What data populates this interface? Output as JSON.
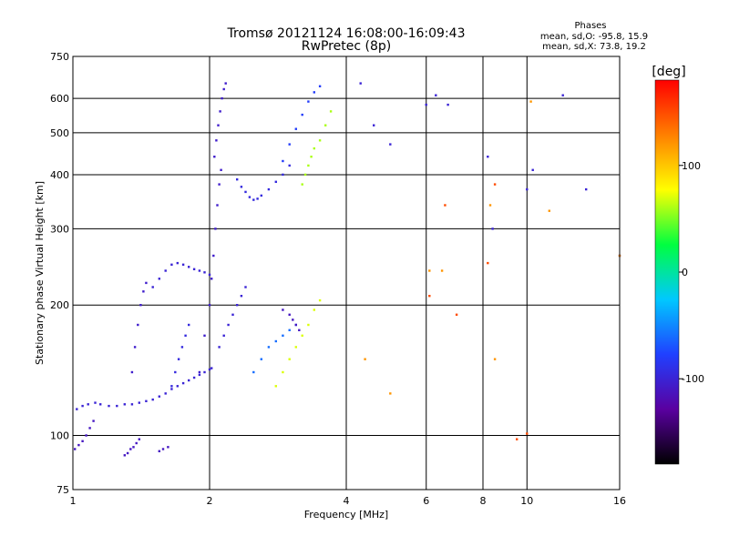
{
  "chart_data": {
    "type": "scatter",
    "title": "Tromsø 20121124 16:08:00-16:09:43",
    "subtitle": "RwPretec (8p)",
    "xlabel": "Frequency [MHz]",
    "ylabel": "Stationary phase Virtual Height [km]",
    "x_scale": "log",
    "y_scale": "log",
    "xlim": [
      1,
      16
    ],
    "ylim": [
      75,
      750
    ],
    "x_ticks": [
      1,
      2,
      4,
      6,
      8,
      10,
      16
    ],
    "y_ticks": [
      75,
      100,
      200,
      300,
      400,
      500,
      600,
      750
    ],
    "grid": true,
    "stats": {
      "heading": "Phases",
      "line_o": "mean, sd,O: -95.8, 15.9",
      "line_x": "mean, sd,X:  73.8, 19.2"
    },
    "colorbar": {
      "label": "[deg]",
      "range": [
        -180,
        180
      ],
      "ticks": [
        -100,
        0,
        100
      ],
      "colors": [
        "#000000",
        "#5a00a0",
        "#2040ff",
        "#00c8ff",
        "#00ff40",
        "#ffff00",
        "#ff8000",
        "#ff0000"
      ]
    },
    "series": [
      {
        "x": [
          1.02,
          1.05,
          1.08,
          1.12,
          1.15,
          1.2,
          1.25,
          1.3,
          1.35,
          1.4,
          1.45,
          1.5,
          1.55,
          1.6,
          1.65,
          1.7,
          1.75,
          1.8,
          1.85,
          1.9,
          1.95,
          2.0,
          2.02
        ],
        "y": [
          115,
          117,
          118,
          119,
          118,
          117,
          117,
          118,
          118,
          119,
          120,
          121,
          123,
          125,
          128,
          130,
          132,
          134,
          136,
          138,
          140,
          142,
          143
        ],
        "phase": -100
      },
      {
        "x": [
          1.01,
          1.03,
          1.05,
          1.07,
          1.09,
          1.11
        ],
        "y": [
          93,
          95,
          97,
          100,
          104,
          108
        ],
        "phase": -110
      },
      {
        "x": [
          1.3,
          1.32,
          1.34,
          1.36,
          1.38,
          1.4
        ],
        "y": [
          90,
          91,
          93,
          94,
          96,
          98
        ],
        "phase": -110
      },
      {
        "x": [
          1.55,
          1.58,
          1.62
        ],
        "y": [
          92,
          93,
          94
        ],
        "phase": -110
      },
      {
        "x": [
          1.35,
          1.37,
          1.39,
          1.41,
          1.43,
          1.45
        ],
        "y": [
          140,
          160,
          180,
          200,
          215,
          225
        ],
        "phase": -105
      },
      {
        "x": [
          1.5,
          1.55,
          1.6,
          1.65,
          1.7,
          1.75,
          1.8,
          1.85,
          1.9,
          1.95,
          2.0
        ],
        "y": [
          220,
          230,
          240,
          248,
          250,
          248,
          245,
          242,
          240,
          238,
          235
        ],
        "phase": -100
      },
      {
        "x": [
          1.65,
          1.68,
          1.71,
          1.74,
          1.77,
          1.8
        ],
        "y": [
          130,
          140,
          150,
          160,
          170,
          180
        ],
        "phase": -95
      },
      {
        "x": [
          1.9,
          1.95,
          2.0,
          2.02,
          2.04,
          2.06,
          2.08,
          2.1,
          2.12
        ],
        "y": [
          140,
          170,
          200,
          230,
          260,
          300,
          340,
          380,
          410
        ],
        "phase": -105
      },
      {
        "x": [
          2.05,
          2.07,
          2.09,
          2.11,
          2.13,
          2.15,
          2.17
        ],
        "y": [
          440,
          480,
          520,
          560,
          600,
          630,
          650
        ],
        "phase": -105
      },
      {
        "x": [
          2.1,
          2.15,
          2.2,
          2.25,
          2.3,
          2.35,
          2.4
        ],
        "y": [
          160,
          170,
          180,
          190,
          200,
          210,
          220
        ],
        "phase": -100
      },
      {
        "x": [
          2.3,
          2.35,
          2.4,
          2.45,
          2.5,
          2.55,
          2.6,
          2.7,
          2.8,
          2.9,
          3.0
        ],
        "y": [
          390,
          375,
          365,
          355,
          350,
          352,
          358,
          370,
          385,
          400,
          420
        ],
        "phase": -95
      },
      {
        "x": [
          2.9,
          3.0,
          3.1,
          3.2,
          3.3,
          3.4,
          3.5
        ],
        "y": [
          430,
          470,
          510,
          550,
          590,
          620,
          640
        ],
        "phase": -80
      },
      {
        "x": [
          3.2,
          3.25,
          3.3,
          3.35,
          3.4,
          3.5,
          3.6,
          3.7
        ],
        "y": [
          380,
          400,
          420,
          440,
          460,
          480,
          520,
          560
        ],
        "phase": 60
      },
      {
        "x": [
          2.5,
          2.6,
          2.7,
          2.8,
          2.9,
          3.0,
          3.1
        ],
        "y": [
          140,
          150,
          160,
          165,
          170,
          175,
          180
        ],
        "phase": -60
      },
      {
        "x": [
          2.8,
          2.9,
          3.0,
          3.1,
          3.2,
          3.3,
          3.4,
          3.5
        ],
        "y": [
          130,
          140,
          150,
          160,
          170,
          180,
          195,
          205
        ],
        "phase": 70
      },
      {
        "x": [
          2.9,
          3.0,
          3.05,
          3.1,
          3.15
        ],
        "y": [
          195,
          190,
          185,
          180,
          175
        ],
        "phase": -110
      },
      {
        "x": [
          4.3,
          4.6,
          5.0,
          6.0,
          6.3,
          6.7,
          8.2,
          8.4,
          10.0,
          10.3,
          12.0,
          13.5,
          16.0
        ],
        "y": [
          650,
          520,
          470,
          580,
          610,
          580,
          440,
          300,
          370,
          410,
          610,
          370,
          260
        ],
        "phase": -100
      },
      {
        "x": [
          4.4,
          5.0,
          6.1,
          6.5,
          8.3,
          8.5,
          10.2,
          11.2,
          16.0
        ],
        "y": [
          150,
          125,
          240,
          240,
          340,
          150,
          590,
          330,
          260
        ],
        "phase": 120
      },
      {
        "x": [
          6.1,
          6.6,
          7.0,
          8.2,
          8.5,
          9.5,
          10.0
        ],
        "y": [
          210,
          340,
          190,
          250,
          380,
          98,
          101
        ],
        "phase": 150
      }
    ]
  }
}
